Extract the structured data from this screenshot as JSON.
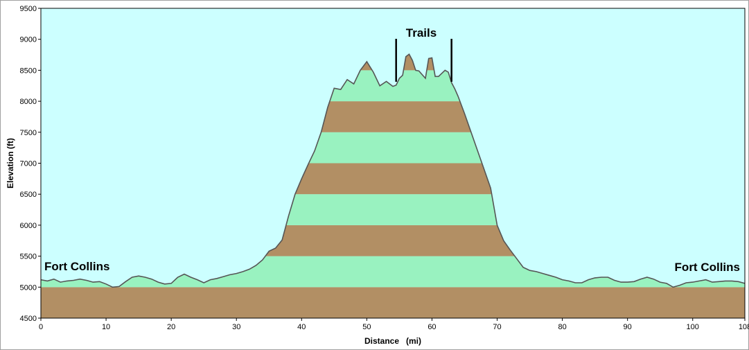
{
  "chart_data": {
    "type": "area",
    "xlabel": "Distance   (mi)",
    "ylabel": "Elevation (ft)",
    "xlim": [
      0,
      108
    ],
    "ylim": [
      4500,
      9500
    ],
    "x_ticks": [
      0,
      10,
      20,
      30,
      40,
      50,
      60,
      70,
      80,
      90,
      100,
      108
    ],
    "y_ticks": [
      4500,
      5000,
      5500,
      6000,
      6500,
      7000,
      7500,
      8000,
      8500,
      9000,
      9500
    ],
    "band_interval_ft": 500,
    "colors": {
      "background": "#ccffff",
      "band_light": "#99f2c0",
      "band_dark": "#b28f64",
      "outline": "#555555"
    },
    "annotations": [
      {
        "text": "Fort Collins",
        "position": "left"
      },
      {
        "text": "Fort Collins",
        "position": "right"
      },
      {
        "text": "Trails",
        "position": "top"
      }
    ],
    "trail_markers_x": [
      54.5,
      63
    ],
    "series": [
      {
        "x": [
          0,
          1,
          2,
          3,
          4,
          5,
          6,
          7,
          8,
          9,
          10,
          11,
          12,
          13,
          14,
          15,
          16,
          17,
          18,
          19,
          20,
          21,
          22,
          23,
          24,
          25,
          26,
          27,
          28,
          29,
          30,
          31,
          32,
          33,
          34,
          35,
          36,
          37,
          38,
          39,
          40,
          41,
          42,
          43,
          44,
          45,
          46,
          47,
          48,
          49,
          50,
          51,
          52,
          53,
          54,
          54.5,
          55,
          55.5,
          56,
          56.5,
          57,
          57.5,
          58,
          59,
          59.5,
          60,
          60.5,
          61,
          62,
          62.5,
          63,
          63.5,
          64,
          65,
          66,
          67,
          68,
          69,
          70,
          71,
          72,
          73,
          74,
          75,
          76,
          77,
          78,
          79,
          80,
          81,
          82,
          83,
          84,
          85,
          86,
          87,
          88,
          89,
          90,
          91,
          92,
          93,
          94,
          95,
          96,
          97,
          98,
          99,
          100,
          101,
          102,
          103,
          104,
          105,
          106,
          107,
          108
        ],
        "y": [
          5120,
          5100,
          5130,
          5080,
          5100,
          5110,
          5130,
          5110,
          5080,
          5090,
          5050,
          5000,
          5010,
          5090,
          5160,
          5180,
          5160,
          5130,
          5080,
          5050,
          5060,
          5160,
          5210,
          5160,
          5120,
          5070,
          5120,
          5140,
          5170,
          5200,
          5220,
          5250,
          5290,
          5350,
          5440,
          5580,
          5630,
          5760,
          6150,
          6500,
          6750,
          6980,
          7200,
          7500,
          7900,
          8210,
          8190,
          8350,
          8280,
          8500,
          8640,
          8470,
          8250,
          8320,
          8240,
          8260,
          8370,
          8420,
          8720,
          8760,
          8660,
          8500,
          8490,
          8370,
          8690,
          8700,
          8400,
          8400,
          8500,
          8470,
          8300,
          8200,
          8080,
          7800,
          7500,
          7200,
          6900,
          6600,
          6000,
          5750,
          5600,
          5460,
          5320,
          5270,
          5250,
          5220,
          5190,
          5160,
          5120,
          5100,
          5070,
          5070,
          5120,
          5150,
          5160,
          5160,
          5110,
          5080,
          5080,
          5090,
          5130,
          5160,
          5130,
          5080,
          5060,
          5000,
          5030,
          5070,
          5080,
          5100,
          5120,
          5080,
          5090,
          5100,
          5100,
          5090,
          5060
        ]
      }
    ]
  }
}
